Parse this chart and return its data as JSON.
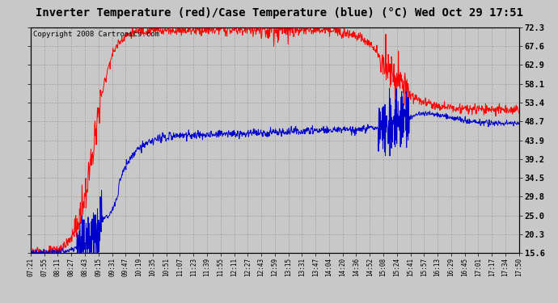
{
  "title": "Inverter Temperature (red)/Case Temperature (blue) (°C) Wed Oct 29 17:51",
  "copyright": "Copyright 2008 Cartronics.com",
  "background_color": "#c8c8c8",
  "plot_background": "#c8c8c8",
  "yticks": [
    15.6,
    20.3,
    25.0,
    29.8,
    34.5,
    39.2,
    43.9,
    48.7,
    53.4,
    58.1,
    62.9,
    67.6,
    72.3
  ],
  "ymin": 15.6,
  "ymax": 72.3,
  "xtick_labels": [
    "07:21",
    "07:55",
    "08:11",
    "08:27",
    "08:43",
    "09:15",
    "09:31",
    "09:47",
    "10:19",
    "10:35",
    "10:51",
    "11:07",
    "11:23",
    "11:39",
    "11:55",
    "12:11",
    "12:27",
    "12:43",
    "12:59",
    "13:15",
    "13:31",
    "13:47",
    "14:04",
    "14:20",
    "14:36",
    "14:52",
    "15:08",
    "15:24",
    "15:41",
    "15:57",
    "16:13",
    "16:29",
    "16:45",
    "17:01",
    "17:17",
    "17:34",
    "17:50"
  ],
  "red_color": "#ff0000",
  "blue_color": "#0000cc",
  "grid_color": "#888888",
  "title_fontsize": 10,
  "copyright_fontsize": 6.5
}
